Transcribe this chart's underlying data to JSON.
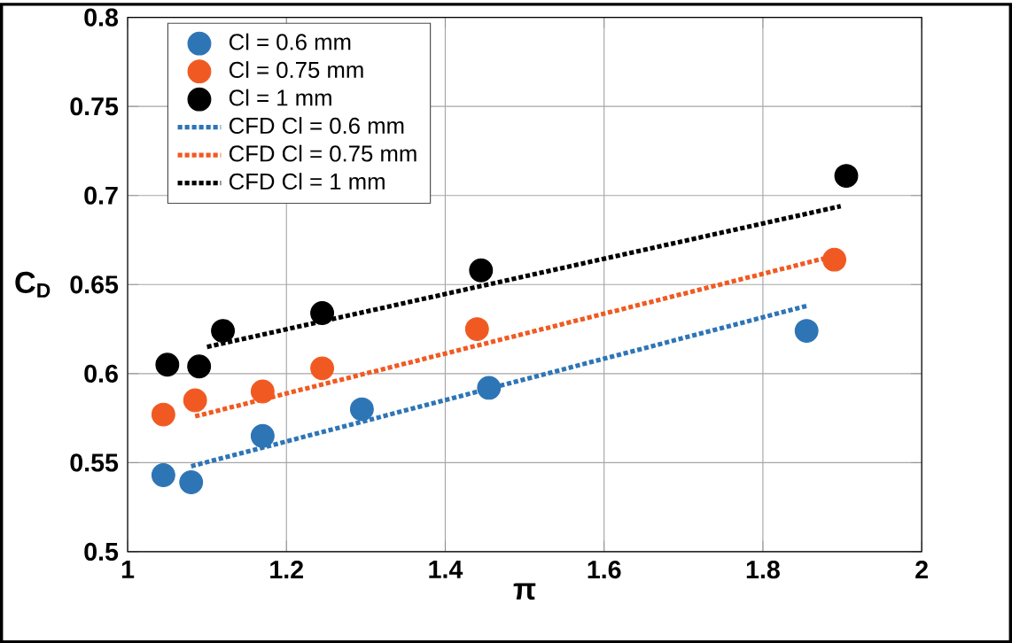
{
  "chart_data": {
    "type": "scatter",
    "xlabel": "π",
    "ylabel": "C$_{D}$",
    "xlim": [
      1,
      2
    ],
    "ylim": [
      0.5,
      0.8
    ],
    "xticks": [
      1,
      1.2,
      1.4,
      1.6,
      1.8,
      2
    ],
    "yticks": [
      0.5,
      0.55,
      0.6,
      0.65,
      0.7,
      0.75,
      0.8
    ],
    "grid": true,
    "legend": "top left",
    "marker": "circle",
    "series": [
      {
        "name": "Cl = 0.6 mm",
        "color": "#2e75b6",
        "x": [
          1.045,
          1.08,
          1.17,
          1.295,
          1.455,
          1.855
        ],
        "values": [
          0.543,
          0.539,
          0.565,
          0.58,
          0.592,
          0.624
        ]
      },
      {
        "name": "Cl = 0.75 mm",
        "color": "#f05a22",
        "x": [
          1.045,
          1.085,
          1.17,
          1.245,
          1.44,
          1.89
        ],
        "values": [
          0.577,
          0.585,
          0.59,
          0.603,
          0.625,
          0.664
        ]
      },
      {
        "name": "Cl = 1 mm",
        "color": "#000000",
        "x": [
          1.05,
          1.09,
          1.12,
          1.245,
          1.445,
          1.905
        ],
        "values": [
          0.605,
          0.604,
          0.624,
          0.634,
          0.658,
          0.711
        ]
      },
      {
        "name": "CFD Cl = 0.6 mm",
        "type": "line",
        "line_style": "dotted",
        "marker": "none",
        "color": "#2e75b6",
        "x": [
          1.08,
          1.855
        ],
        "values": [
          0.548,
          0.638
        ]
      },
      {
        "name": "CFD Cl = 0.75 mm",
        "type": "line",
        "line_style": "dotted",
        "marker": "none",
        "color": "#f05a22",
        "x": [
          1.085,
          1.88
        ],
        "values": [
          0.576,
          0.665
        ]
      },
      {
        "name": "CFD Cl = 1 mm",
        "type": "line",
        "line_style": "dotted",
        "marker": "none",
        "color": "#000000",
        "x": [
          1.1,
          1.898
        ],
        "values": [
          0.615,
          0.694
        ]
      }
    ]
  }
}
